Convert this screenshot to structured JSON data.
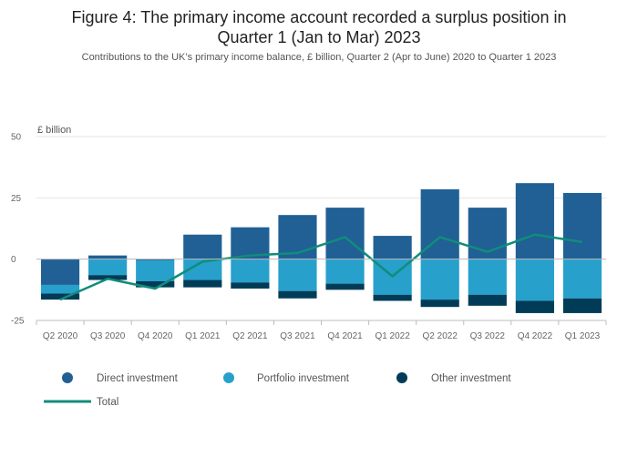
{
  "header": {
    "title_line1": "Figure 4: The primary income account recorded a surplus position in",
    "title_line2": "Quarter 1 (Jan to Mar) 2023",
    "subtitle": "Contributions to the UK’s primary income balance, £ billion, Quarter 2 (Apr to June) 2020 to Quarter 1 2023"
  },
  "chart_data": {
    "type": "bar",
    "stacked": true,
    "title": "Figure 4: The primary income account recorded a surplus position in Quarter 1 (Jan to Mar) 2023",
    "subtitle": "Contributions to the UK’s primary income balance, £ billion, Quarter 2 (Apr to June) 2020 to Quarter 1 2023",
    "ylabel": "£ billion",
    "ylim": [
      -25,
      50
    ],
    "yticks": [
      -25,
      0,
      25,
      50
    ],
    "grid": true,
    "legend_position": "bottom",
    "categories": [
      "Q2 2020",
      "Q3 2020",
      "Q4 2020",
      "Q1 2021",
      "Q2 2021",
      "Q3 2021",
      "Q4 2021",
      "Q1 2022",
      "Q2 2022",
      "Q3 2022",
      "Q4 2022",
      "Q1 2023"
    ],
    "series": [
      {
        "name": "Direct investment",
        "kind": "bar",
        "color": "#206095",
        "values": [
          -10.5,
          1.5,
          -0.5,
          10,
          13,
          18,
          21,
          9.5,
          28.5,
          21,
          31,
          27
        ]
      },
      {
        "name": "Portfolio investment",
        "kind": "bar",
        "color": "#27a0cc",
        "values": [
          -3.5,
          -6.5,
          -8.5,
          -8.5,
          -9.5,
          -13,
          -10,
          -14.5,
          -16.5,
          -14.5,
          -17,
          -16
        ]
      },
      {
        "name": "Other investment",
        "kind": "bar",
        "color": "#003c57",
        "values": [
          -2.5,
          -2,
          -2.5,
          -3,
          -2.5,
          -3,
          -2.5,
          -2.5,
          -3,
          -4.5,
          -5,
          -6
        ]
      },
      {
        "name": "Total",
        "kind": "line",
        "color": "#118c7b",
        "values": [
          -16.5,
          -8,
          -12,
          -1,
          1.5,
          2.5,
          9,
          -7,
          9,
          3,
          10,
          7
        ]
      }
    ]
  }
}
